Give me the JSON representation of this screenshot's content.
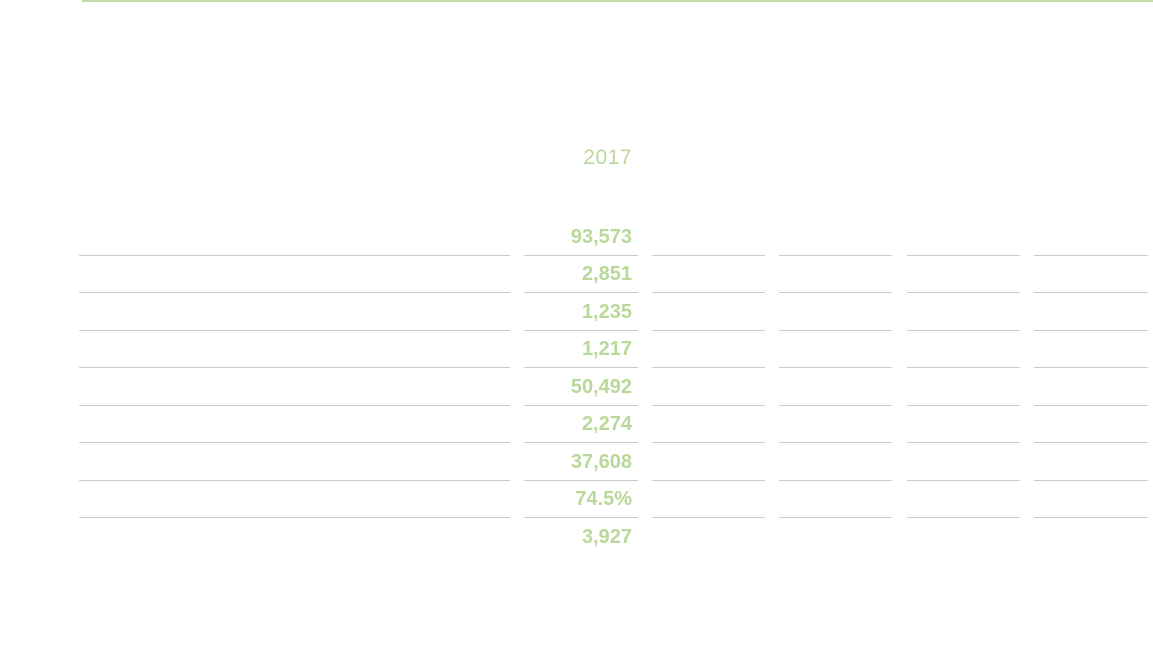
{
  "header": {
    "year": "2017"
  },
  "rows": [
    {
      "value": "93,573"
    },
    {
      "value": "2,851"
    },
    {
      "value": "1,235"
    },
    {
      "value": "1,217"
    },
    {
      "value": "50,492"
    },
    {
      "value": "2,274"
    },
    {
      "value": "37,608"
    },
    {
      "value": "74.5%"
    },
    {
      "value": "3,927"
    }
  ],
  "colors": {
    "accent": "#b9d89a",
    "rule": "#c4ced8"
  }
}
